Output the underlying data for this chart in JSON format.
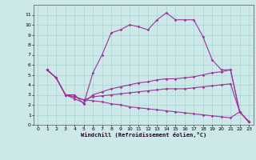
{
  "xlabel": "Windchill (Refroidissement éolien,°C)",
  "background_color": "#cce8e8",
  "line_color": "#993399",
  "xlim": [
    -0.5,
    23.5
  ],
  "ylim": [
    0,
    12
  ],
  "xticks": [
    0,
    1,
    2,
    3,
    4,
    5,
    6,
    7,
    8,
    9,
    10,
    11,
    12,
    13,
    14,
    15,
    16,
    17,
    18,
    19,
    20,
    21,
    22,
    23
  ],
  "yticks": [
    0,
    1,
    2,
    3,
    4,
    5,
    6,
    7,
    8,
    9,
    10,
    11
  ],
  "line1_x": [
    1,
    2,
    3,
    4,
    5,
    6,
    7,
    8,
    9,
    10,
    11,
    12,
    13,
    14,
    15,
    16,
    17,
    18,
    19,
    20,
    21,
    22,
    23
  ],
  "line1_y": [
    5.5,
    4.7,
    3.0,
    3.0,
    2.1,
    5.2,
    7.0,
    9.2,
    9.5,
    10.0,
    9.8,
    9.5,
    10.5,
    11.2,
    10.5,
    10.5,
    10.5,
    8.8,
    6.5,
    5.5,
    5.5,
    1.3,
    0.3
  ],
  "line2_x": [
    1,
    2,
    3,
    4,
    5,
    6,
    7,
    8,
    9,
    10,
    11,
    12,
    13,
    14,
    15,
    16,
    17,
    18,
    19,
    20,
    21,
    22,
    23
  ],
  "line2_y": [
    5.5,
    4.7,
    3.0,
    2.6,
    2.2,
    3.0,
    3.3,
    3.6,
    3.8,
    4.0,
    4.2,
    4.3,
    4.5,
    4.6,
    4.6,
    4.7,
    4.8,
    5.0,
    5.2,
    5.3,
    5.5,
    1.3,
    0.3
  ],
  "line3_x": [
    1,
    2,
    3,
    4,
    5,
    6,
    7,
    8,
    9,
    10,
    11,
    12,
    13,
    14,
    15,
    16,
    17,
    18,
    19,
    20,
    21,
    22,
    23
  ],
  "line3_y": [
    5.5,
    4.7,
    3.0,
    2.8,
    2.5,
    2.8,
    2.9,
    3.0,
    3.1,
    3.2,
    3.3,
    3.4,
    3.5,
    3.6,
    3.6,
    3.6,
    3.7,
    3.8,
    3.9,
    4.0,
    4.1,
    1.3,
    0.3
  ],
  "line4_x": [
    1,
    2,
    3,
    4,
    5,
    6,
    7,
    8,
    9,
    10,
    11,
    12,
    13,
    14,
    15,
    16,
    17,
    18,
    19,
    20,
    21,
    22,
    23
  ],
  "line4_y": [
    5.5,
    4.7,
    3.0,
    2.8,
    2.5,
    2.4,
    2.3,
    2.1,
    2.0,
    1.8,
    1.7,
    1.6,
    1.5,
    1.4,
    1.3,
    1.2,
    1.1,
    1.0,
    0.9,
    0.8,
    0.7,
    1.3,
    0.3
  ]
}
